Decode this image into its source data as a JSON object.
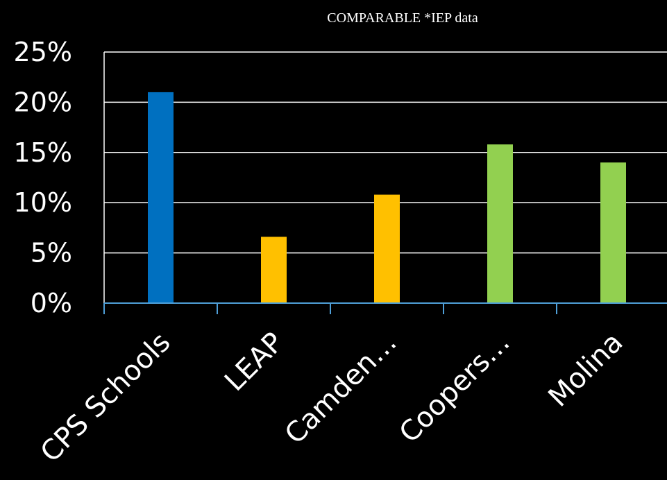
{
  "chart_data": {
    "type": "bar",
    "title": "COMPARABLE *IEP data",
    "xlabel": "",
    "ylabel": "",
    "categories": [
      "CPS Schools",
      "LEAP",
      "Camden…",
      "Coopers…",
      "Molina"
    ],
    "values": [
      21,
      6.6,
      10.8,
      15.8,
      14
    ],
    "bar_colors": [
      "#0070C0",
      "#FFC000",
      "#FFC000",
      "#92D050",
      "#92D050"
    ],
    "ylim": [
      0,
      25
    ],
    "yticks": [
      0,
      5,
      10,
      15,
      20,
      25
    ],
    "ytick_labels": [
      "0%",
      "5%",
      "10%",
      "15%",
      "20%",
      "25%"
    ],
    "grid": true,
    "legend": "none",
    "colors": {
      "background": "#000000",
      "text": "#ffffff",
      "gridline": "#ffffff",
      "axis": "#4f9fd8"
    }
  }
}
